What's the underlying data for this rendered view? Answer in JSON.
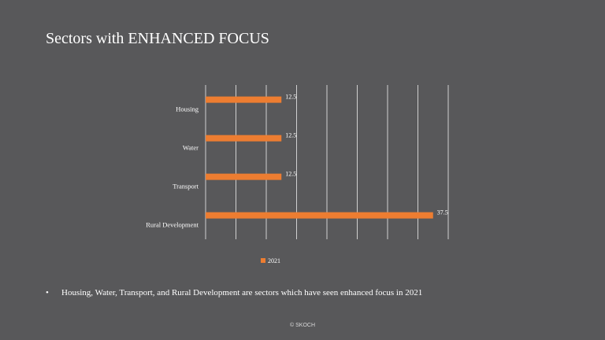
{
  "slide": {
    "title": "Sectors with ENHANCED FOCUS",
    "bullet_symbol": "•",
    "bullet_text": "Housing, Water, Transport, and Rural Development are sectors which have seen enhanced focus in 2021",
    "footer": "© SKOCH"
  },
  "colors": {
    "background": "#58585a",
    "bar": "#ed7d31",
    "grid": "#ffffff",
    "text": "#ffffff"
  },
  "chart_data": {
    "type": "bar",
    "orientation": "horizontal",
    "categories": [
      "Housing",
      "Water",
      "Transport",
      "Rural Development"
    ],
    "series": [
      {
        "name": "2021",
        "values": [
          12.5,
          12.5,
          12.5,
          37.5
        ]
      }
    ],
    "xlim": [
      0,
      40
    ],
    "x_gridline_step": 5,
    "grid": true,
    "data_labels": true,
    "legend": "bottom"
  }
}
